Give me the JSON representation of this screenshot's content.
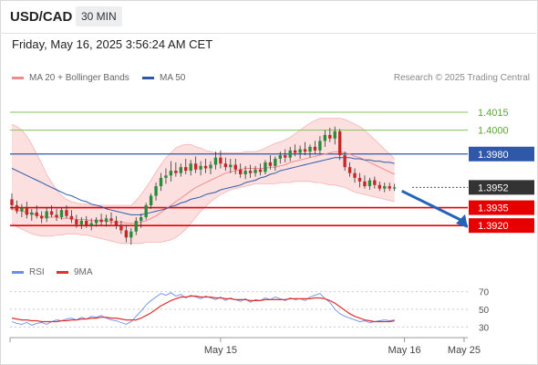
{
  "header": {
    "pair": "USD/CAD",
    "timeframe": "30 MIN"
  },
  "datetime": "Friday, May 16, 2025 3:56:24 AM CET",
  "legend": {
    "ma20_label": "MA 20 + Bollinger Bands",
    "ma50_label": "MA 50",
    "credit": "Research © 2025 Trading Central",
    "rsi_label": "RSI",
    "rsi9_label": "9MA"
  },
  "colors": {
    "ma20": "#f08c8c",
    "bands_fill": "#fcdada",
    "ma50": "#2f58a8",
    "bull": "#2a8c3a",
    "bear": "#c62828",
    "candle_wick": "#333333",
    "green_level": "#84c25a",
    "blue_level": "#2f58a8",
    "red_level": "#e60000",
    "last_price": "#333333",
    "rsi": "#6b8ee8",
    "rsi9": "#e03030",
    "arrow": "#2563b8"
  },
  "chart_data": [
    {
      "type": "candlestick",
      "title": "USD/CAD 30 MIN",
      "x_labels": [
        "May 15",
        "May 16",
        "May 25"
      ],
      "ylim": [
        1.3901,
        1.4038
      ],
      "levels": [
        {
          "value": 1.4015,
          "label": "1.4015",
          "kind": "resistance",
          "style": "green-line"
        },
        {
          "value": 1.4,
          "label": "1.4000",
          "kind": "resistance",
          "style": "green-line"
        },
        {
          "value": 1.398,
          "label": "1.3980",
          "kind": "pivot",
          "style": "blue-line"
        },
        {
          "value": 1.3952,
          "label": "1.3952",
          "kind": "last-price",
          "style": "dotted"
        },
        {
          "value": 1.3935,
          "label": "1.3935",
          "kind": "support",
          "style": "red-line"
        },
        {
          "value": 1.392,
          "label": "1.3920",
          "kind": "support",
          "style": "red-line"
        }
      ],
      "candles": [
        [
          1.3942,
          1.3947,
          1.3933,
          1.3937
        ],
        [
          1.3937,
          1.3941,
          1.393,
          1.3932
        ],
        [
          1.3932,
          1.3938,
          1.3927,
          1.3935
        ],
        [
          1.3935,
          1.394,
          1.3926,
          1.3929
        ],
        [
          1.3929,
          1.3934,
          1.3924,
          1.3931
        ],
        [
          1.3931,
          1.3937,
          1.3926,
          1.3928
        ],
        [
          1.3928,
          1.3932,
          1.3922,
          1.3926
        ],
        [
          1.3926,
          1.3935,
          1.3923,
          1.3932
        ],
        [
          1.3932,
          1.3937,
          1.3927,
          1.3929
        ],
        [
          1.3929,
          1.3934,
          1.3924,
          1.3927
        ],
        [
          1.3927,
          1.3935,
          1.3925,
          1.3933
        ],
        [
          1.3933,
          1.3937,
          1.3926,
          1.3928
        ],
        [
          1.3928,
          1.3933,
          1.3922,
          1.3925
        ],
        [
          1.3925,
          1.3929,
          1.3918,
          1.3921
        ],
        [
          1.3921,
          1.3927,
          1.3917,
          1.3924
        ],
        [
          1.3924,
          1.3928,
          1.3918,
          1.392
        ],
        [
          1.392,
          1.3926,
          1.3916,
          1.3922
        ],
        [
          1.3922,
          1.3927,
          1.3919,
          1.3925
        ],
        [
          1.3925,
          1.393,
          1.392,
          1.3923
        ],
        [
          1.3923,
          1.3929,
          1.3919,
          1.3926
        ],
        [
          1.3926,
          1.3931,
          1.3921,
          1.3924
        ],
        [
          1.3924,
          1.3928,
          1.3917,
          1.392
        ],
        [
          1.392,
          1.3924,
          1.3913,
          1.3916
        ],
        [
          1.3916,
          1.392,
          1.3906,
          1.391
        ],
        [
          1.391,
          1.3918,
          1.3904,
          1.3915
        ],
        [
          1.3915,
          1.3927,
          1.3912,
          1.3924
        ],
        [
          1.3924,
          1.393,
          1.3918,
          1.3927
        ],
        [
          1.3927,
          1.3939,
          1.3925,
          1.3937
        ],
        [
          1.3937,
          1.3947,
          1.3934,
          1.3945
        ],
        [
          1.3945,
          1.3956,
          1.3941,
          1.3953
        ],
        [
          1.3953,
          1.3964,
          1.3949,
          1.396
        ],
        [
          1.396,
          1.3968,
          1.3955,
          1.3962
        ],
        [
          1.3962,
          1.3974,
          1.3957,
          1.3966
        ],
        [
          1.3966,
          1.3973,
          1.3961,
          1.3964
        ],
        [
          1.3964,
          1.3972,
          1.3961,
          1.3969
        ],
        [
          1.3969,
          1.3976,
          1.3963,
          1.3966
        ],
        [
          1.3966,
          1.3975,
          1.3962,
          1.3972
        ],
        [
          1.3972,
          1.3978,
          1.3964,
          1.3967
        ],
        [
          1.3967,
          1.3974,
          1.3962,
          1.397
        ],
        [
          1.397,
          1.3976,
          1.3964,
          1.3968
        ],
        [
          1.3968,
          1.3974,
          1.3963,
          1.3971
        ],
        [
          1.3971,
          1.3982,
          1.3967,
          1.3977
        ],
        [
          1.3977,
          1.3983,
          1.3968,
          1.3972
        ],
        [
          1.3972,
          1.3977,
          1.3966,
          1.3969
        ],
        [
          1.3969,
          1.3976,
          1.3964,
          1.3971
        ],
        [
          1.3971,
          1.3976,
          1.3963,
          1.3967
        ],
        [
          1.3967,
          1.3972,
          1.396,
          1.3963
        ],
        [
          1.3963,
          1.397,
          1.3959,
          1.3966
        ],
        [
          1.3966,
          1.3971,
          1.396,
          1.3964
        ],
        [
          1.3964,
          1.397,
          1.3961,
          1.3967
        ],
        [
          1.3967,
          1.3972,
          1.3962,
          1.3965
        ],
        [
          1.3965,
          1.3975,
          1.3963,
          1.3973
        ],
        [
          1.3973,
          1.3979,
          1.3967,
          1.397
        ],
        [
          1.397,
          1.3978,
          1.3966,
          1.3976
        ],
        [
          1.3976,
          1.3982,
          1.3972,
          1.3979
        ],
        [
          1.3979,
          1.3984,
          1.3973,
          1.3977
        ],
        [
          1.3977,
          1.3986,
          1.3974,
          1.3983
        ],
        [
          1.3983,
          1.3988,
          1.3978,
          1.3981
        ],
        [
          1.3981,
          1.3987,
          1.3976,
          1.3984
        ],
        [
          1.3984,
          1.399,
          1.3979,
          1.3982
        ],
        [
          1.3982,
          1.3988,
          1.3977,
          1.3986
        ],
        [
          1.3986,
          1.3991,
          1.398,
          1.3983
        ],
        [
          1.3983,
          1.3995,
          1.398,
          1.3991
        ],
        [
          1.3991,
          1.4,
          1.3986,
          1.3996
        ],
        [
          1.3996,
          1.4002,
          1.399,
          1.3993
        ],
        [
          1.3993,
          1.4003,
          1.3988,
          1.3999
        ],
        [
          1.3999,
          1.4001,
          1.3975,
          1.3979
        ],
        [
          1.3979,
          1.3982,
          1.3966,
          1.3969
        ],
        [
          1.3969,
          1.3973,
          1.3961,
          1.3964
        ],
        [
          1.3964,
          1.3968,
          1.3956,
          1.396
        ],
        [
          1.396,
          1.3964,
          1.3952,
          1.3957
        ],
        [
          1.3957,
          1.3962,
          1.3951,
          1.3953
        ],
        [
          1.3953,
          1.396,
          1.395,
          1.3958
        ],
        [
          1.3958,
          1.3961,
          1.3951,
          1.3954
        ],
        [
          1.3954,
          1.3957,
          1.3949,
          1.3951
        ],
        [
          1.3951,
          1.3956,
          1.3948,
          1.3953
        ],
        [
          1.3953,
          1.3956,
          1.3949,
          1.3951
        ],
        [
          1.3951,
          1.3955,
          1.3949,
          1.3952
        ]
      ],
      "ma20": [
        1.3934,
        1.3933,
        1.3932,
        1.3931,
        1.393,
        1.3929,
        1.3928,
        1.3927,
        1.3927,
        1.3927,
        1.3926,
        1.3926,
        1.3926,
        1.3925,
        1.3925,
        1.3925,
        1.3924,
        1.3924,
        1.3924,
        1.3924,
        1.3923,
        1.3923,
        1.3923,
        1.3922,
        1.3922,
        1.3922,
        1.3923,
        1.3924,
        1.3926,
        1.3928,
        1.3931,
        1.3934,
        1.3937,
        1.394,
        1.3943,
        1.3946,
        1.3949,
        1.3952,
        1.3954,
        1.3956,
        1.3958,
        1.396,
        1.3962,
        1.3964,
        1.3965,
        1.3966,
        1.3967,
        1.3968,
        1.3968,
        1.3968,
        1.3968,
        1.3968,
        1.3969,
        1.3969,
        1.397,
        1.3971,
        1.3973,
        1.3974,
        1.3975,
        1.3976,
        1.3977,
        1.3978,
        1.3979,
        1.398,
        1.3981,
        1.3982,
        1.3982,
        1.3981,
        1.398,
        1.3978,
        1.3977,
        1.3975,
        1.3973,
        1.3971,
        1.3969,
        1.3967,
        1.3965,
        1.3963
      ],
      "bb_upper": [
        1.4005,
        1.4003,
        1.4,
        1.3995,
        1.3988,
        1.398,
        1.3972,
        1.3963,
        1.3956,
        1.395,
        1.3945,
        1.3942,
        1.394,
        1.3939,
        1.3938,
        1.3938,
        1.3937,
        1.3937,
        1.3937,
        1.3937,
        1.3937,
        1.3937,
        1.3937,
        1.3937,
        1.3937,
        1.3941,
        1.3946,
        1.3952,
        1.3958,
        1.3965,
        1.3971,
        1.3977,
        1.3981,
        1.3985,
        1.3987,
        1.3988,
        1.3988,
        1.3986,
        1.3985,
        1.3983,
        1.3982,
        1.3981,
        1.3981,
        1.3981,
        1.3981,
        1.3981,
        1.3981,
        1.3982,
        1.3982,
        1.3982,
        1.3983,
        1.3985,
        1.3987,
        1.3989,
        1.399,
        1.3992,
        1.3994,
        1.3997,
        1.4,
        1.4003,
        1.4006,
        1.4008,
        1.401,
        1.401,
        1.401,
        1.401,
        1.401,
        1.4009,
        1.4007,
        1.4005,
        1.4003,
        1.4,
        1.3996,
        1.3992,
        1.3988,
        1.3984,
        1.398,
        1.3976
      ],
      "bb_lower": [
        1.3922,
        1.3919,
        1.3917,
        1.3915,
        1.3913,
        1.3912,
        1.3911,
        1.3911,
        1.3911,
        1.3912,
        1.3912,
        1.3913,
        1.3913,
        1.3913,
        1.3912,
        1.3912,
        1.3911,
        1.391,
        1.3909,
        1.3908,
        1.3907,
        1.3906,
        1.3905,
        1.3905,
        1.3905,
        1.3905,
        1.3905,
        1.3906,
        1.3906,
        1.3906,
        1.3906,
        1.3907,
        1.3908,
        1.391,
        1.3913,
        1.3917,
        1.3922,
        1.3927,
        1.3932,
        1.3936,
        1.394,
        1.3943,
        1.3946,
        1.3948,
        1.395,
        1.3951,
        1.3952,
        1.3953,
        1.3954,
        1.3955,
        1.3955,
        1.3955,
        1.3955,
        1.3955,
        1.3956,
        1.3956,
        1.3956,
        1.3957,
        1.3957,
        1.3957,
        1.3957,
        1.3956,
        1.3956,
        1.3955,
        1.3954,
        1.3954,
        1.3953,
        1.3952,
        1.395,
        1.3948,
        1.3947,
        1.3946,
        1.3945,
        1.3944,
        1.3943,
        1.3942,
        1.3941,
        1.394
      ],
      "ma50": [
        1.3968,
        1.3966,
        1.3964,
        1.3962,
        1.396,
        1.3958,
        1.3956,
        1.3954,
        1.3952,
        1.395,
        1.3948,
        1.3946,
        1.3945,
        1.3943,
        1.3941,
        1.394,
        1.3938,
        1.3937,
        1.3936,
        1.3934,
        1.3933,
        1.3932,
        1.3931,
        1.393,
        1.3929,
        1.3929,
        1.3929,
        1.393,
        1.3931,
        1.3932,
        1.3933,
        1.3934,
        1.3936,
        1.3937,
        1.3939,
        1.394,
        1.3942,
        1.3943,
        1.3944,
        1.3946,
        1.3947,
        1.3948,
        1.395,
        1.3951,
        1.3952,
        1.3953,
        1.3954,
        1.3956,
        1.3957,
        1.3958,
        1.396,
        1.3961,
        1.3963,
        1.3964,
        1.3966,
        1.3967,
        1.3968,
        1.3969,
        1.397,
        1.3971,
        1.3972,
        1.3973,
        1.3974,
        1.3975,
        1.3976,
        1.3977,
        1.3977,
        1.3977,
        1.3977,
        1.3976,
        1.3976,
        1.3975,
        1.3975,
        1.3974,
        1.3974,
        1.3973,
        1.3973,
        1.3972
      ]
    },
    {
      "type": "line",
      "title": "RSI",
      "yticks": [
        70,
        50,
        30
      ],
      "ylim": [
        22,
        78
      ],
      "series": [
        {
          "name": "RSI",
          "values": [
            36,
            34,
            33,
            35,
            32,
            34,
            35,
            33,
            36,
            38,
            37,
            39,
            40,
            38,
            41,
            39,
            42,
            41,
            43,
            40,
            38,
            37,
            35,
            33,
            36,
            42,
            48,
            55,
            60,
            64,
            68,
            66,
            69,
            65,
            67,
            63,
            66,
            64,
            62,
            65,
            63,
            61,
            64,
            60,
            63,
            61,
            59,
            62,
            58,
            61,
            60,
            63,
            61,
            64,
            62,
            60,
            63,
            61,
            62,
            60,
            64,
            66,
            68,
            62,
            58,
            50,
            45,
            42,
            40,
            38,
            36,
            37,
            35,
            36,
            37,
            38,
            37,
            38
          ]
        },
        {
          "name": "9MA",
          "values": [
            40,
            39,
            38,
            38,
            37,
            37,
            36,
            36,
            36,
            36,
            37,
            37,
            38,
            38,
            39,
            39,
            40,
            40,
            41,
            41,
            40,
            40,
            39,
            38,
            38,
            38,
            40,
            43,
            46,
            50,
            54,
            57,
            60,
            62,
            64,
            64,
            65,
            65,
            64,
            64,
            64,
            63,
            63,
            62,
            62,
            61,
            61,
            61,
            60,
            60,
            60,
            61,
            61,
            61,
            61,
            61,
            62,
            62,
            62,
            62,
            62,
            63,
            63,
            62,
            60,
            57,
            53,
            49,
            45,
            42,
            40,
            38,
            37,
            36,
            36,
            36,
            36,
            37
          ]
        }
      ],
      "x_labels": [
        "May 15",
        "May 16",
        "May 25"
      ]
    }
  ]
}
